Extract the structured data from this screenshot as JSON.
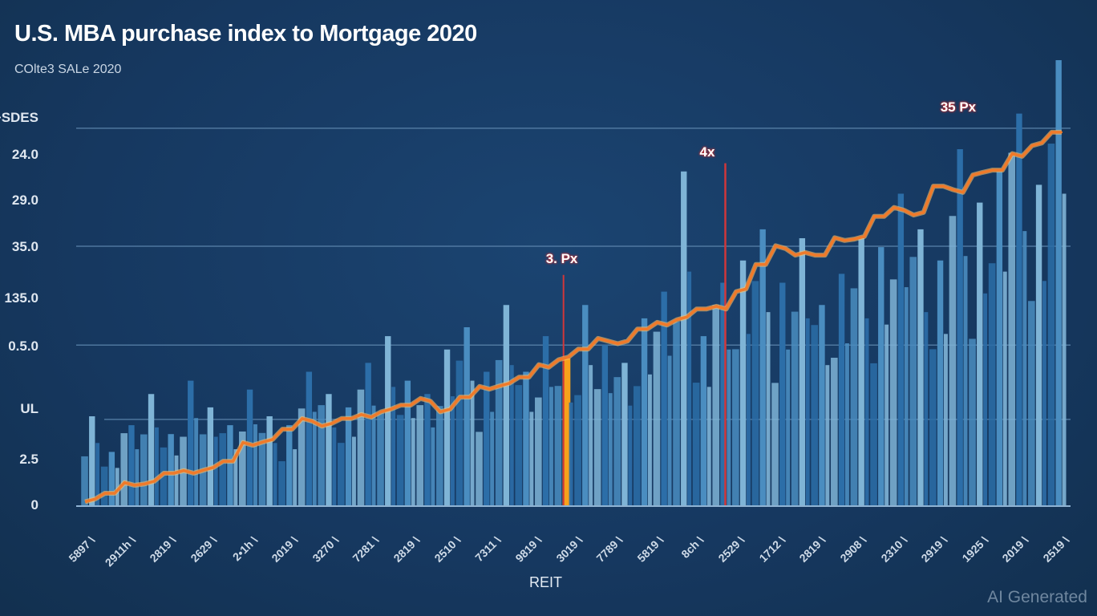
{
  "chart_data": {
    "type": "bar",
    "title": "U.S. MBA purchase index to Mortgage 2020",
    "subtitle": "COlte3 SALe 2020",
    "xlabel": "REIT",
    "ylabel": "",
    "y_tick_labels": [
      "+SDES",
      "24.0",
      "29.0",
      "35.0",
      "135.0",
      "0.5.0",
      "UL",
      "2.5",
      "0"
    ],
    "x_tick_labels": [
      "5897",
      "2911h",
      "2819",
      "2629",
      "2•1h",
      "2019",
      "3270",
      "7281",
      "2819",
      "2510",
      "7311",
      "9819",
      "3019",
      "7789",
      "5819",
      "8ch",
      "2529",
      "1712",
      "2819",
      "2908",
      "2310",
      "2919",
      "1925",
      "2019",
      "2519"
    ],
    "ylim": [
      0,
      100
    ],
    "grid": true,
    "series": [
      {
        "type": "bar",
        "values": [
          20,
          12,
          18,
          25,
          16,
          28,
          22,
          18,
          26,
          20,
          18,
          30,
          25,
          22,
          32,
          38,
          28,
          25,
          35,
          40,
          30,
          45,
          30,
          38,
          33,
          45,
          36,
          32,
          42,
          48,
          75,
          38,
          50,
          55,
          62,
          50,
          60,
          45,
          52,
          60,
          58,
          70,
          62,
          55,
          80,
          68,
          75,
          88,
          72,
          100
        ]
      },
      {
        "type": "line",
        "values": [
          1.4,
          2.7,
          4.5,
          5.4,
          7.2,
          7.2,
          8.5,
          9.9,
          13.5,
          14.8,
          17.1,
          18.9,
          18.4,
          19.5,
          19.8,
          21.6,
          22.5,
          23.4,
          21.6,
          24.3,
          26.1,
          27.4,
          28.8,
          31.0,
          33.3,
          35.1,
          36.9,
          36.9,
          39.6,
          40.5,
          42.3,
          44.1,
          44.1,
          48.6,
          54.1,
          57.7,
          56.8,
          56.2,
          59.5,
          60.4,
          64.9,
          66.3,
          65.8,
          71.7,
          70.3,
          74.8,
          75.3,
          78.4,
          81.4,
          83.8
        ]
      }
    ],
    "highlight_bar_index": 24,
    "annotations": [
      {
        "label": "3. Px",
        "index": 24,
        "value": 55
      },
      {
        "label": "4x",
        "index": 32,
        "value": 79
      },
      {
        "label": "35 Px",
        "index": 44,
        "value": 89
      }
    ],
    "colors": {
      "background": "#173a63",
      "bar_light": "#7fb4d6",
      "bar_mid": "#4a8dc0",
      "bar_dark": "#2c6ea8",
      "line": "#f07a2a",
      "highlight": "#f7a21b",
      "marker": "#d0373a",
      "grid": "#5d86ad"
    }
  },
  "watermark": "AI Generated"
}
